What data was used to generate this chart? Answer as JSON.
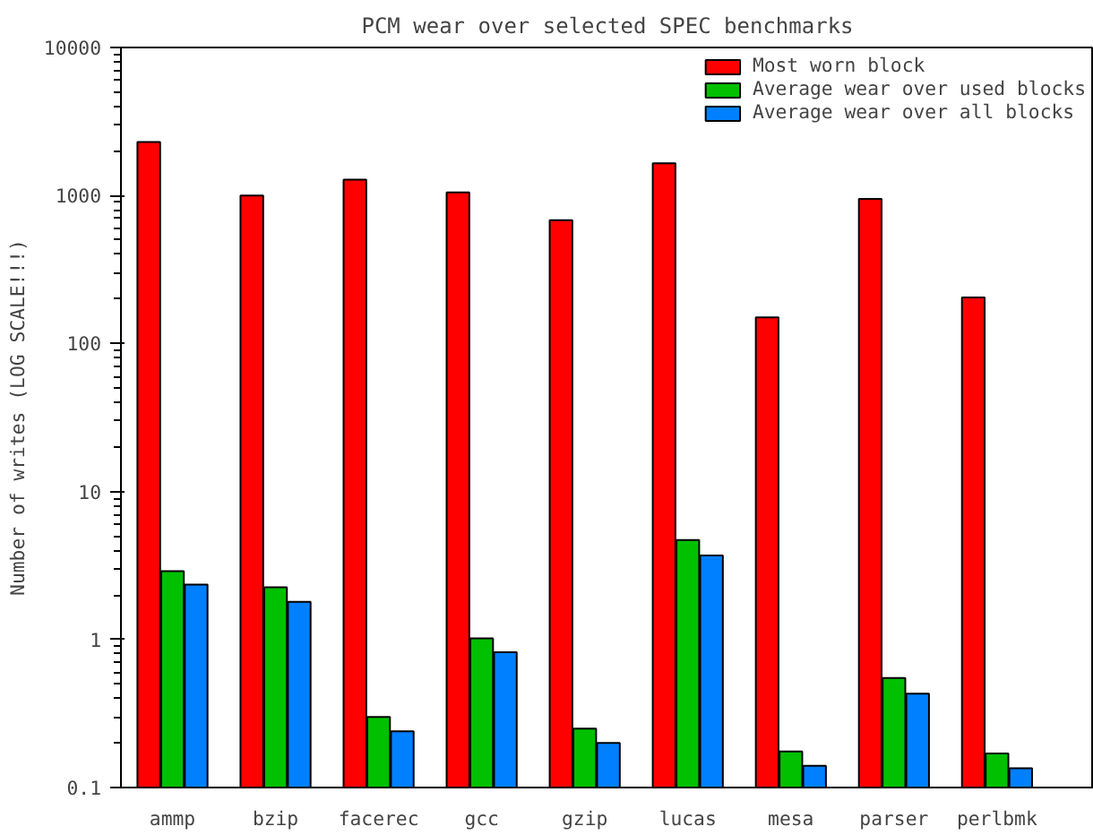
{
  "chart_data": {
    "type": "bar",
    "title": "PCM wear over selected SPEC benchmarks",
    "ylabel": "Number of writes (LOG SCALE!!!)",
    "categories": [
      "ammp",
      "bzip",
      "facerec",
      "gcc",
      "gzip",
      "lucas",
      "mesa",
      "parser",
      "perlbmk"
    ],
    "series": [
      {
        "name": "Most worn block",
        "color": "#ff0000",
        "values": [
          2300,
          1000,
          1280,
          1050,
          680,
          1650,
          150,
          950,
          205
        ]
      },
      {
        "name": "Average wear over used blocks",
        "color": "#00c000",
        "values": [
          2.9,
          2.25,
          0.3,
          1.02,
          0.25,
          4.7,
          0.175,
          0.55,
          0.17
        ]
      },
      {
        "name": "Average wear over all blocks",
        "color": "#0080ff",
        "values": [
          2.35,
          1.8,
          0.24,
          0.82,
          0.2,
          3.7,
          0.14,
          0.43,
          0.135
        ]
      }
    ],
    "log": "y",
    "ylim": [
      0.1,
      10000
    ],
    "yticks": [
      0.1,
      1,
      10,
      100,
      1000,
      10000
    ],
    "grid": false,
    "legend": "top right"
  }
}
